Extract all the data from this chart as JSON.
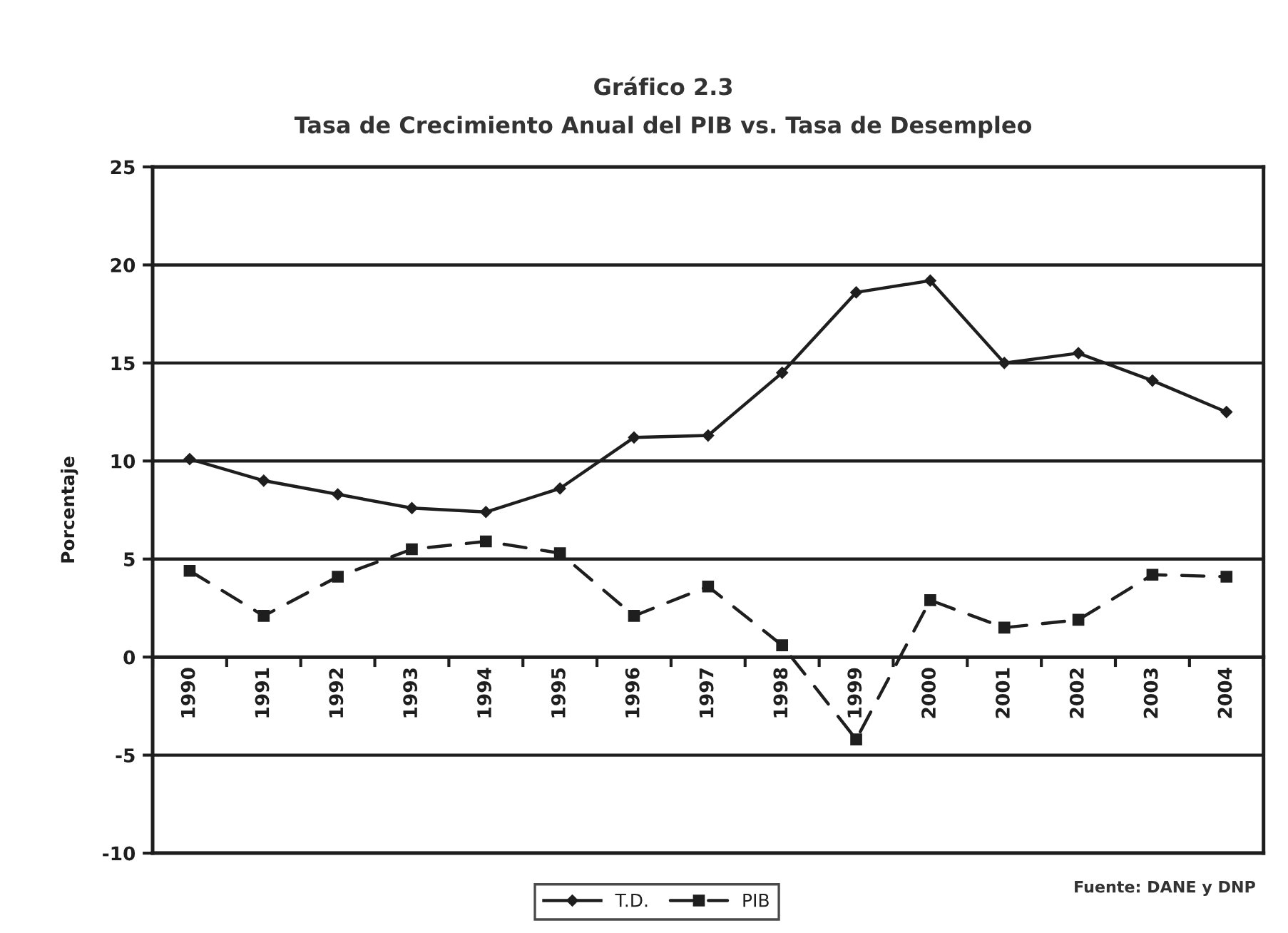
{
  "chart_data": {
    "type": "line",
    "title": "Gráfico 2.3",
    "subtitle": "Tasa de Crecimiento Anual del PIB vs. Tasa de Desempleo",
    "ylabel": "Porcentaje",
    "categories": [
      "1990",
      "1991",
      "1992",
      "1993",
      "1994",
      "1995",
      "1996",
      "1997",
      "1998",
      "1999",
      "2000",
      "2001",
      "2002",
      "2003",
      "2004"
    ],
    "series": [
      {
        "name": "T.D.",
        "color": "#1e1e1e",
        "marker": "diamond",
        "line_style": "solid",
        "values": [
          10.1,
          9.0,
          8.3,
          7.6,
          7.4,
          8.6,
          11.2,
          11.3,
          14.5,
          18.6,
          19.2,
          15.0,
          15.5,
          14.1,
          12.5
        ]
      },
      {
        "name": "PIB",
        "color": "#1e1e1e",
        "marker": "square",
        "line_style": "dashed",
        "values": [
          4.4,
          2.1,
          4.1,
          5.5,
          5.9,
          5.3,
          2.1,
          3.6,
          0.6,
          -4.2,
          2.9,
          1.5,
          1.9,
          4.2,
          4.1
        ]
      }
    ],
    "ylim": [
      -10,
      25
    ],
    "yticks": [
      -10,
      -5,
      0,
      5,
      10,
      15,
      20,
      25
    ],
    "grid": "y",
    "legend": "bottom",
    "annotations": [
      "Fuente: DANE y DNP"
    ]
  }
}
